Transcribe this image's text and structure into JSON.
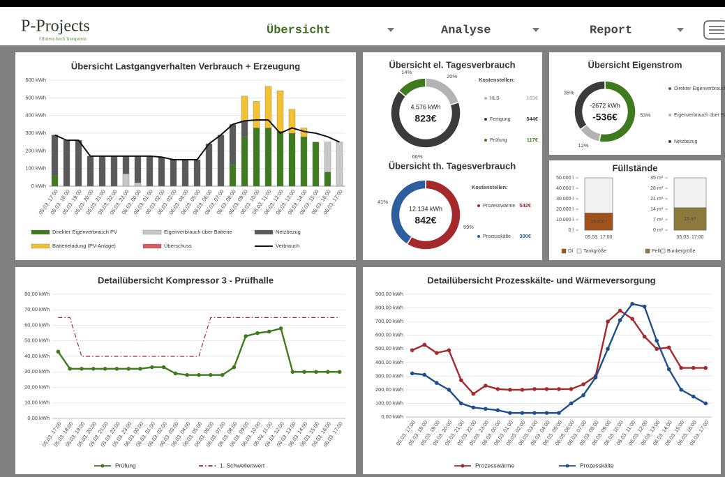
{
  "header": {
    "logo": "P-Projects",
    "tagline": "Effizienz durch Transparenz",
    "nav": [
      "Übersicht",
      "Analyse",
      "Report"
    ]
  },
  "chart_data": [
    {
      "type": "bar",
      "stacked": true,
      "grid": true,
      "title": "Übersicht Lastgangverhalten Verbrauch + Erzeugung",
      "categories": [
        "05.03. 17:00",
        "05.03. 18:00",
        "05.03. 19:00",
        "05.03. 20:00",
        "05.03. 21:00",
        "05.03. 22:00",
        "05.03. 23:00",
        "06.03. 00:00",
        "06.03. 01:00",
        "06.03. 02:00",
        "06.03. 03:00",
        "06.03. 04:00",
        "06.03. 05:00",
        "06.03. 06:00",
        "06.03. 07:00",
        "06.03. 08:00",
        "06.03. 09:00",
        "06.03. 10:00",
        "06.03. 11:00",
        "06.03. 12:00",
        "06.03. 13:00",
        "06.03. 14:00",
        "06.03. 15:00",
        "06.03. 16:00",
        "06.03. 17:00"
      ],
      "ylim": [
        0,
        600
      ],
      "yticks": [
        {
          "value": 0,
          "label": "0 kWh"
        },
        {
          "value": 100,
          "label": "100 kWh"
        },
        {
          "value": 200,
          "label": "200 kWh"
        },
        {
          "value": 300,
          "label": "300 kWh"
        },
        {
          "value": 400,
          "label": "400 kWh"
        },
        {
          "value": 500,
          "label": "500 kWh"
        },
        {
          "value": 600,
          "label": "600 kWh"
        }
      ],
      "series": [
        {
          "name": "Direkter Eigenverbrauch PV",
          "type": "bar",
          "color": "#3f7a1f",
          "values": [
            60,
            0,
            0,
            0,
            0,
            0,
            0,
            0,
            0,
            0,
            0,
            0,
            0,
            0,
            0,
            120,
            280,
            330,
            330,
            310,
            300,
            280,
            250,
            80,
            0
          ]
        },
        {
          "name": "Eigenverbrauch über Batterie",
          "type": "bar",
          "color": "#c8c8c8",
          "values": [
            0,
            0,
            0,
            0,
            0,
            0,
            70,
            20,
            0,
            0,
            0,
            0,
            0,
            0,
            0,
            0,
            0,
            0,
            0,
            0,
            0,
            0,
            0,
            170,
            250
          ]
        },
        {
          "name": "Netzbezug",
          "type": "bar",
          "color": "#5a5a5a",
          "values": [
            230,
            260,
            260,
            170,
            170,
            170,
            100,
            150,
            170,
            165,
            150,
            150,
            150,
            240,
            290,
            230,
            90,
            0,
            0,
            0,
            0,
            0,
            0,
            0,
            0
          ]
        },
        {
          "name": "Batterieladung (PV-Anlage)",
          "type": "bar",
          "color": "#f2c230",
          "values": [
            0,
            0,
            0,
            0,
            0,
            0,
            0,
            0,
            0,
            0,
            0,
            0,
            0,
            0,
            0,
            0,
            140,
            150,
            235,
            230,
            135,
            50,
            0,
            0,
            0
          ]
        },
        {
          "name": "Überschuss",
          "type": "bar",
          "color": "#d9595c",
          "values": [
            0,
            0,
            0,
            0,
            0,
            0,
            0,
            0,
            0,
            0,
            0,
            0,
            0,
            0,
            0,
            0,
            0,
            0,
            0,
            0,
            0,
            0,
            0,
            0,
            0
          ]
        },
        {
          "name": "Verbrauch",
          "type": "line",
          "color": "#111111",
          "values": [
            290,
            260,
            260,
            170,
            170,
            170,
            170,
            170,
            170,
            165,
            150,
            150,
            150,
            240,
            290,
            350,
            370,
            375,
            375,
            300,
            330,
            310,
            300,
            280,
            250
          ]
        }
      ]
    },
    {
      "type": "pie",
      "donut": true,
      "title": "Übersicht el. Tagesverbrauch",
      "center_labels": [
        "4.576 kWh",
        "823€"
      ],
      "legend_title": "Kostenstellen:",
      "categories": [
        "HLS",
        "Fertigung",
        "Prüfung"
      ],
      "values": [
        20,
        66,
        14
      ],
      "value_labels": [
        "20%",
        "66%",
        "14%"
      ],
      "colors": [
        "#b3b3b3",
        "#3b3b3b",
        "#3f7a1f"
      ],
      "costs": [
        "163€",
        "544€",
        "117€"
      ]
    },
    {
      "type": "pie",
      "donut": true,
      "title": "Übersicht th. Tagesverbrauch",
      "center_labels": [
        "12.134 kWh",
        "842€"
      ],
      "legend_title": "Kostenstellen:",
      "categories": [
        "Prozesswärme",
        "Prozesskälte"
      ],
      "values": [
        59,
        41
      ],
      "value_labels": [
        "59%",
        "41%"
      ],
      "colors": [
        "#a5282c",
        "#2e5e9e"
      ],
      "costs": [
        "542€",
        "300€"
      ]
    },
    {
      "type": "pie",
      "donut": true,
      "title": "Übersicht Eigenstrom",
      "center_labels": [
        "-2672 kWh",
        "-536€"
      ],
      "categories": [
        "Direkter Eigenverbrauch PV",
        "Eigenverbrauch über Batterie",
        "Netzbezug"
      ],
      "values": [
        53,
        12,
        35
      ],
      "value_labels": [
        "53%",
        "12%",
        "35%"
      ],
      "colors": [
        "#3f7a1f",
        "#b3b3b3",
        "#3b3b3b"
      ]
    },
    {
      "type": "level",
      "title": "Füllstände",
      "panels": [
        {
          "categories": [
            "05.03. 17:00"
          ],
          "ylim": [
            0,
            50000
          ],
          "yticks": [
            {
              "value": 0,
              "label": "0 l"
            },
            {
              "value": 10000,
              "label": "10.000 l"
            },
            {
              "value": 20000,
              "label": "20.000 l"
            },
            {
              "value": 30000,
              "label": "30.000 l"
            },
            {
              "value": 40000,
              "label": "40.000 l"
            },
            {
              "value": 50000,
              "label": "50.000 l"
            }
          ],
          "series": [
            {
              "name": "Öl",
              "color": "#a0521a",
              "values": [
                16400
              ],
              "value_labels": [
                "16.400 l"
              ]
            },
            {
              "name": "Tankgröße",
              "color": "#f2f2f2",
              "values": [
                50000
              ]
            }
          ]
        },
        {
          "categories": [
            "05.03. 17:00"
          ],
          "ylim": [
            0,
            35
          ],
          "yticks": [
            {
              "value": 0,
              "label": "0 m³"
            },
            {
              "value": 7,
              "label": "7 m³"
            },
            {
              "value": 14,
              "label": "14 m³"
            },
            {
              "value": 21,
              "label": "21 m³"
            },
            {
              "value": 28,
              "label": "28 m³"
            },
            {
              "value": 35,
              "label": "35 m³"
            }
          ],
          "series": [
            {
              "name": "Pellet",
              "color": "#8c7a3c",
              "values": [
                15
              ],
              "value_labels": [
                "15 m³"
              ]
            },
            {
              "name": "Bunkergröße",
              "color": "#f2f2f2",
              "values": [
                35
              ]
            }
          ]
        }
      ]
    },
    {
      "type": "line",
      "grid": true,
      "title": "Detailübersicht Kompressor 3 - Prüfhalle",
      "categories": [
        "05.03. 17:00",
        "05.03. 18:00",
        "05.03. 19:00",
        "05.03. 20:00",
        "05.03. 21:00",
        "05.03. 22:00",
        "05.03. 23:00",
        "06.03. 00:00",
        "06.03. 01:00",
        "06.03. 02:00",
        "06.03. 03:00",
        "06.03. 04:00",
        "06.03. 05:00",
        "06.03. 06:00",
        "06.03. 07:00",
        "06.03. 08:00",
        "06.03. 09:00",
        "06.03. 10:00",
        "06.03. 11:00",
        "06.03. 12:00",
        "06.03. 13:00",
        "06.03. 14:00",
        "06.03. 15:00",
        "06.03. 16:00",
        "06.03. 17:00"
      ],
      "ylim": [
        0,
        80
      ],
      "yticks": [
        {
          "value": 0,
          "label": "0,00 kWh"
        },
        {
          "value": 10,
          "label": "10,00 kWh"
        },
        {
          "value": 20,
          "label": "20,00 kWh"
        },
        {
          "value": 30,
          "label": "30,00 kWh"
        },
        {
          "value": 40,
          "label": "40,00 kWh"
        },
        {
          "value": 50,
          "label": "50,00 kWh"
        },
        {
          "value": 60,
          "label": "60,00 kWh"
        },
        {
          "value": 70,
          "label": "70,00 kWh"
        },
        {
          "value": 80,
          "label": "80,00 kWh"
        }
      ],
      "series": [
        {
          "name": "Prüfung",
          "color": "#3f7a1f",
          "marker": true,
          "values": [
            43,
            32,
            32,
            32,
            32,
            32,
            32,
            32,
            33,
            33,
            29,
            28,
            28,
            28,
            28,
            33,
            53,
            55,
            56,
            58,
            30,
            30,
            30,
            30,
            30
          ]
        },
        {
          "name": "1. Schwellenwert",
          "color": "#a5282c",
          "marker": false,
          "dash": "dashdot",
          "values": [
            65,
            65,
            40,
            40,
            40,
            40,
            40,
            40,
            40,
            40,
            40,
            40,
            40,
            65,
            65,
            65,
            65,
            65,
            65,
            65,
            65,
            65,
            65,
            65,
            65
          ]
        }
      ]
    },
    {
      "type": "line",
      "grid": true,
      "title": "Detailübersicht Prozesskälte- und Wärmeversorgung",
      "categories": [
        "05.03. 17:00",
        "05.03. 18:00",
        "05.03. 19:00",
        "05.03. 20:00",
        "05.03. 21:00",
        "05.03. 22:00",
        "05.03. 23:00",
        "06.03. 00:00",
        "06.03. 01:00",
        "06.03. 02:00",
        "06.03. 03:00",
        "06.03. 04:00",
        "06.03. 05:00",
        "06.03. 06:00",
        "06.03. 07:00",
        "06.03. 08:00",
        "06.03. 09:00",
        "06.03. 10:00",
        "06.03. 11:00",
        "06.03. 12:00",
        "06.03. 13:00",
        "06.03. 14:00",
        "06.03. 15:00",
        "06.03. 16:00",
        "06.03. 17:00"
      ],
      "ylim": [
        0,
        900
      ],
      "yticks": [
        {
          "value": 0,
          "label": "0,00 kWh"
        },
        {
          "value": 100,
          "label": "100,00 kWh"
        },
        {
          "value": 200,
          "label": "200,00 kWh"
        },
        {
          "value": 300,
          "label": "300,00 kWh"
        },
        {
          "value": 400,
          "label": "400,00 kWh"
        },
        {
          "value": 500,
          "label": "500,00 kWh"
        },
        {
          "value": 600,
          "label": "600,00 kWh"
        },
        {
          "value": 700,
          "label": "700,00 kWh"
        },
        {
          "value": 800,
          "label": "800,00 kWh"
        },
        {
          "value": 900,
          "label": "900,00 kWh"
        }
      ],
      "series": [
        {
          "name": "Prozesswärme",
          "color": "#a5282c",
          "marker": true,
          "values": [
            490,
            530,
            470,
            490,
            270,
            170,
            230,
            205,
            200,
            200,
            205,
            205,
            205,
            205,
            240,
            300,
            700,
            780,
            720,
            590,
            500,
            510,
            360,
            360,
            360
          ]
        },
        {
          "name": "Prozesskälte",
          "color": "#1f4e8c",
          "marker": true,
          "values": [
            320,
            310,
            250,
            200,
            100,
            70,
            60,
            50,
            30,
            30,
            30,
            30,
            30,
            100,
            160,
            290,
            500,
            710,
            830,
            810,
            560,
            350,
            200,
            150,
            100
          ]
        }
      ]
    }
  ]
}
